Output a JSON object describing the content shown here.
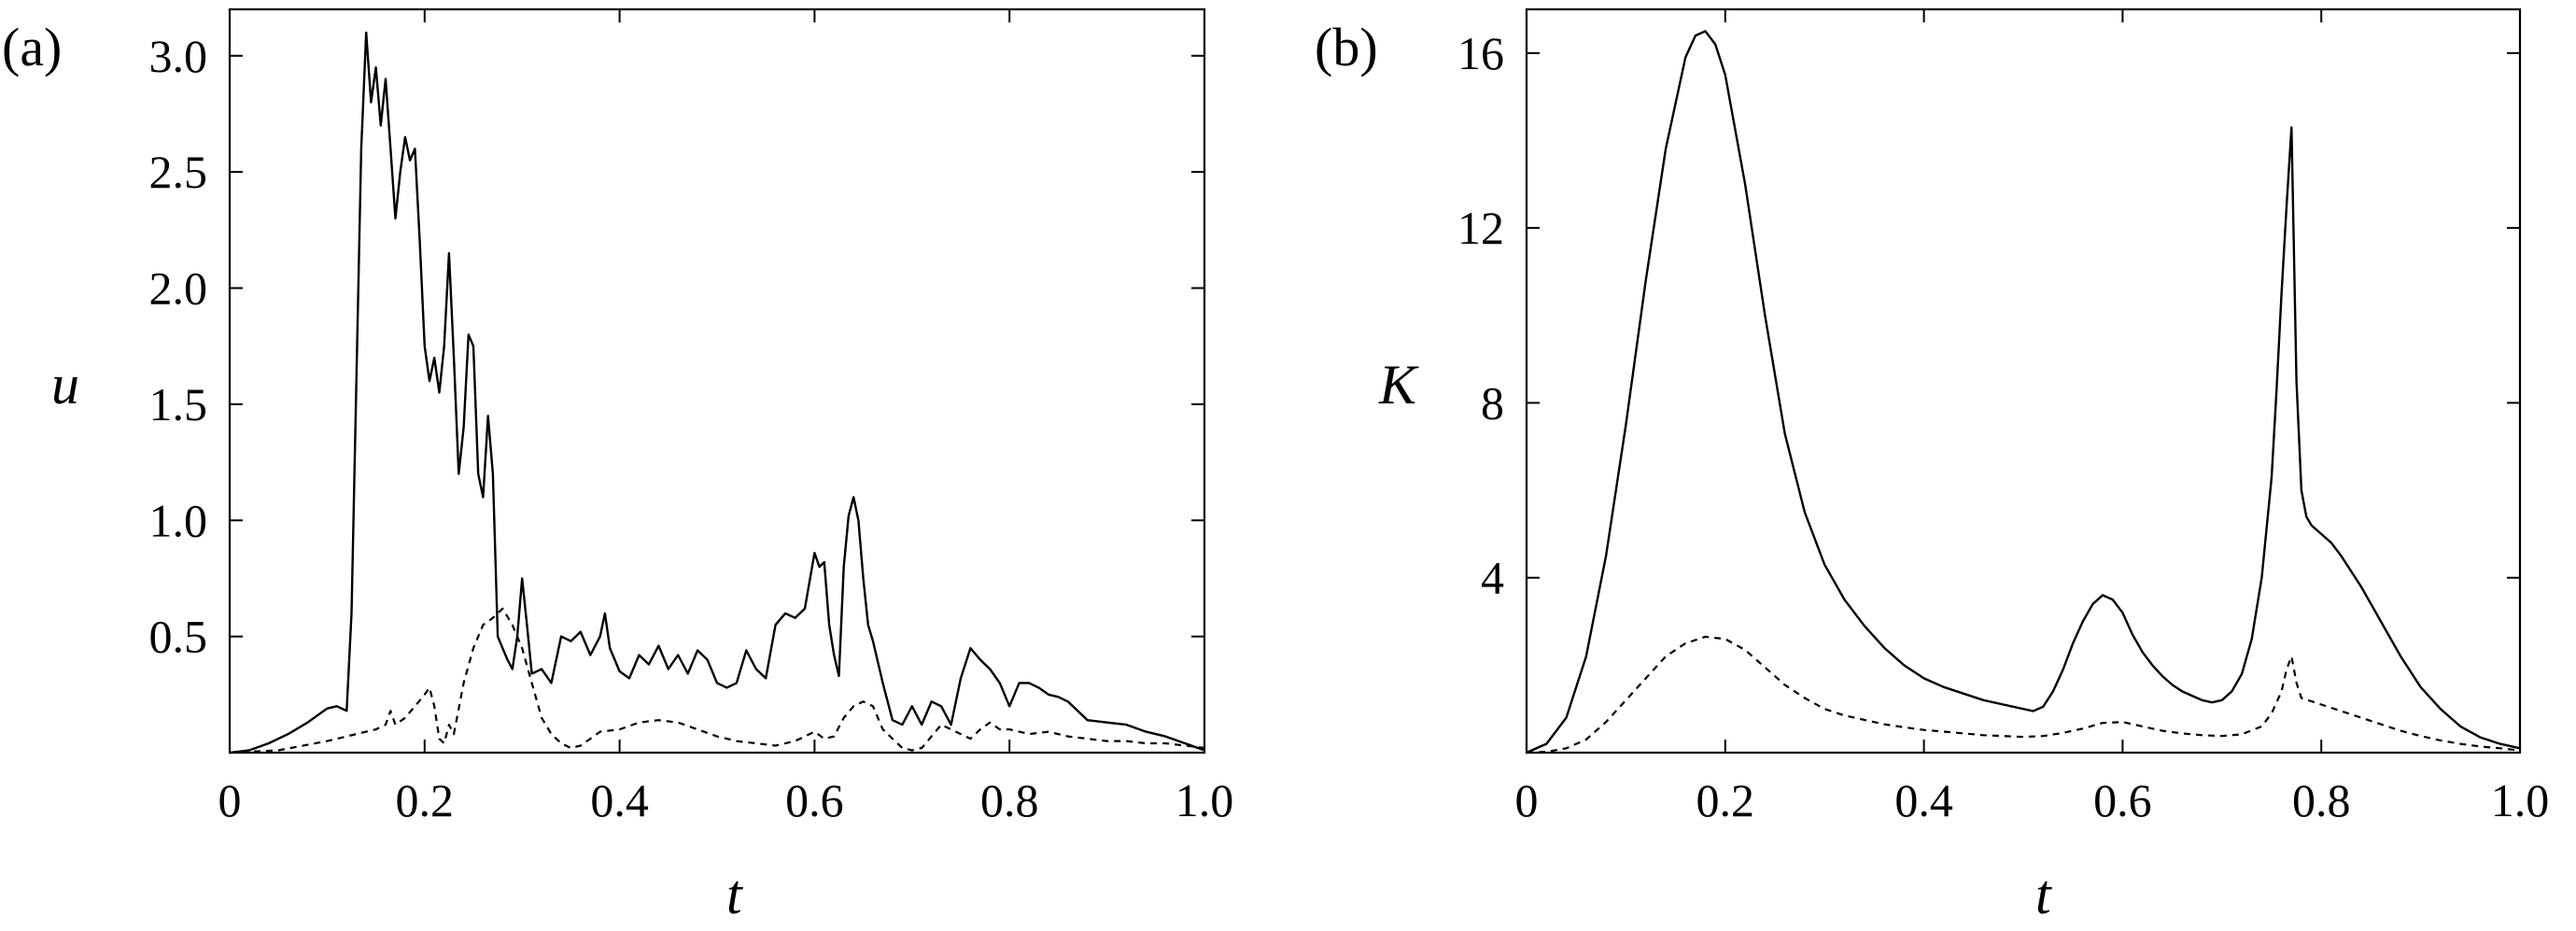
{
  "chart_data": [
    {
      "type": "line",
      "panel_label": "(a)",
      "xlabel": "t",
      "ylabel": "u",
      "xlim": [
        0,
        1.0
      ],
      "ylim": [
        0,
        3.2
      ],
      "xticks": [
        0,
        0.2,
        0.4,
        0.6,
        0.8,
        1.0
      ],
      "xtick_labels": [
        "0",
        "0.2",
        "0.4",
        "0.6",
        "0.8",
        "1.0"
      ],
      "yticks": [
        0.5,
        1.0,
        1.5,
        2.0,
        2.5,
        3.0
      ],
      "ytick_labels": [
        "0.5",
        "1.0",
        "1.5",
        "2.0",
        "2.5",
        "3.0"
      ],
      "grid": false,
      "series": [
        {
          "style": "solid",
          "x": [
            0.0,
            0.02,
            0.04,
            0.06,
            0.08,
            0.1,
            0.11,
            0.12,
            0.125,
            0.13,
            0.135,
            0.14,
            0.145,
            0.15,
            0.155,
            0.16,
            0.165,
            0.17,
            0.175,
            0.18,
            0.185,
            0.19,
            0.195,
            0.2,
            0.205,
            0.21,
            0.215,
            0.22,
            0.225,
            0.23,
            0.235,
            0.24,
            0.245,
            0.25,
            0.255,
            0.26,
            0.265,
            0.27,
            0.275,
            0.28,
            0.285,
            0.29,
            0.295,
            0.3,
            0.305,
            0.31,
            0.32,
            0.33,
            0.34,
            0.35,
            0.36,
            0.37,
            0.38,
            0.385,
            0.39,
            0.4,
            0.41,
            0.42,
            0.43,
            0.44,
            0.45,
            0.46,
            0.47,
            0.48,
            0.49,
            0.5,
            0.51,
            0.52,
            0.53,
            0.54,
            0.55,
            0.56,
            0.57,
            0.58,
            0.59,
            0.6,
            0.605,
            0.61,
            0.615,
            0.62,
            0.625,
            0.63,
            0.635,
            0.64,
            0.645,
            0.65,
            0.655,
            0.66,
            0.67,
            0.68,
            0.69,
            0.7,
            0.71,
            0.72,
            0.73,
            0.74,
            0.75,
            0.76,
            0.77,
            0.78,
            0.79,
            0.8,
            0.81,
            0.82,
            0.83,
            0.84,
            0.85,
            0.86,
            0.87,
            0.88,
            0.9,
            0.92,
            0.94,
            0.96,
            0.98,
            1.0
          ],
          "y": [
            0.0,
            0.01,
            0.04,
            0.08,
            0.13,
            0.19,
            0.2,
            0.18,
            0.6,
            1.6,
            2.6,
            3.1,
            2.8,
            2.95,
            2.7,
            2.9,
            2.6,
            2.3,
            2.5,
            2.65,
            2.55,
            2.6,
            2.2,
            1.75,
            1.6,
            1.7,
            1.55,
            1.75,
            2.15,
            1.7,
            1.2,
            1.4,
            1.8,
            1.75,
            1.2,
            1.1,
            1.45,
            1.2,
            0.5,
            0.45,
            0.4,
            0.36,
            0.5,
            0.75,
            0.55,
            0.34,
            0.36,
            0.3,
            0.5,
            0.48,
            0.52,
            0.42,
            0.5,
            0.6,
            0.45,
            0.35,
            0.32,
            0.42,
            0.38,
            0.46,
            0.36,
            0.42,
            0.34,
            0.44,
            0.4,
            0.3,
            0.28,
            0.3,
            0.44,
            0.36,
            0.32,
            0.55,
            0.6,
            0.58,
            0.62,
            0.86,
            0.8,
            0.82,
            0.55,
            0.42,
            0.33,
            0.8,
            1.02,
            1.1,
            1.0,
            0.75,
            0.55,
            0.48,
            0.3,
            0.14,
            0.12,
            0.2,
            0.12,
            0.22,
            0.2,
            0.12,
            0.32,
            0.45,
            0.4,
            0.36,
            0.3,
            0.2,
            0.3,
            0.3,
            0.28,
            0.25,
            0.24,
            0.22,
            0.18,
            0.14,
            0.13,
            0.12,
            0.09,
            0.07,
            0.04,
            0.01
          ],
          "name": ""
        },
        {
          "style": "dashed",
          "x": [
            0.0,
            0.05,
            0.1,
            0.14,
            0.15,
            0.16,
            0.165,
            0.17,
            0.18,
            0.19,
            0.2,
            0.205,
            0.21,
            0.215,
            0.22,
            0.225,
            0.23,
            0.24,
            0.25,
            0.26,
            0.27,
            0.28,
            0.29,
            0.3,
            0.31,
            0.32,
            0.33,
            0.34,
            0.35,
            0.36,
            0.37,
            0.38,
            0.4,
            0.42,
            0.44,
            0.46,
            0.48,
            0.5,
            0.52,
            0.54,
            0.56,
            0.58,
            0.6,
            0.61,
            0.62,
            0.63,
            0.64,
            0.65,
            0.66,
            0.67,
            0.68,
            0.69,
            0.7,
            0.71,
            0.72,
            0.73,
            0.74,
            0.75,
            0.76,
            0.77,
            0.78,
            0.79,
            0.8,
            0.82,
            0.84,
            0.86,
            0.88,
            0.9,
            0.92,
            0.94,
            0.96,
            0.98,
            1.0
          ],
          "y": [
            0.0,
            0.01,
            0.05,
            0.09,
            0.1,
            0.12,
            0.18,
            0.12,
            0.15,
            0.2,
            0.25,
            0.28,
            0.2,
            0.06,
            0.04,
            0.12,
            0.08,
            0.3,
            0.45,
            0.55,
            0.58,
            0.62,
            0.55,
            0.45,
            0.3,
            0.15,
            0.08,
            0.04,
            0.02,
            0.03,
            0.06,
            0.09,
            0.1,
            0.13,
            0.14,
            0.13,
            0.1,
            0.07,
            0.05,
            0.04,
            0.03,
            0.05,
            0.09,
            0.06,
            0.07,
            0.15,
            0.2,
            0.22,
            0.2,
            0.1,
            0.06,
            0.02,
            0.01,
            0.02,
            0.07,
            0.12,
            0.1,
            0.08,
            0.06,
            0.1,
            0.13,
            0.1,
            0.1,
            0.08,
            0.09,
            0.07,
            0.06,
            0.05,
            0.05,
            0.04,
            0.04,
            0.03,
            0.02
          ],
          "name": ""
        }
      ]
    },
    {
      "type": "line",
      "panel_label": "(b)",
      "xlabel": "t",
      "ylabel": "K",
      "xlim": [
        0,
        1.0
      ],
      "ylim": [
        0,
        17
      ],
      "xticks": [
        0,
        0.2,
        0.4,
        0.6,
        0.8,
        1.0
      ],
      "xtick_labels": [
        "0",
        "0.2",
        "0.4",
        "0.6",
        "0.8",
        "1.0"
      ],
      "yticks": [
        4,
        8,
        12,
        16
      ],
      "ytick_labels": [
        "4",
        "8",
        "12",
        "16"
      ],
      "grid": false,
      "series": [
        {
          "style": "solid",
          "x": [
            0.0,
            0.02,
            0.04,
            0.06,
            0.08,
            0.1,
            0.12,
            0.14,
            0.16,
            0.17,
            0.18,
            0.19,
            0.2,
            0.22,
            0.24,
            0.26,
            0.28,
            0.3,
            0.32,
            0.34,
            0.36,
            0.38,
            0.4,
            0.42,
            0.44,
            0.46,
            0.48,
            0.5,
            0.51,
            0.52,
            0.53,
            0.54,
            0.55,
            0.56,
            0.57,
            0.58,
            0.59,
            0.6,
            0.61,
            0.62,
            0.63,
            0.64,
            0.65,
            0.66,
            0.67,
            0.68,
            0.69,
            0.7,
            0.71,
            0.72,
            0.73,
            0.74,
            0.75,
            0.755,
            0.76,
            0.765,
            0.77,
            0.775,
            0.78,
            0.785,
            0.79,
            0.8,
            0.81,
            0.82,
            0.84,
            0.86,
            0.88,
            0.9,
            0.92,
            0.94,
            0.96,
            0.98,
            1.0
          ],
          "y": [
            0.0,
            0.2,
            0.8,
            2.2,
            4.5,
            7.5,
            10.8,
            13.8,
            15.9,
            16.4,
            16.5,
            16.2,
            15.5,
            13.0,
            10.0,
            7.3,
            5.5,
            4.3,
            3.5,
            2.9,
            2.4,
            2.0,
            1.7,
            1.5,
            1.35,
            1.2,
            1.1,
            1.0,
            0.95,
            1.05,
            1.4,
            1.9,
            2.5,
            3.0,
            3.4,
            3.6,
            3.5,
            3.2,
            2.7,
            2.3,
            2.0,
            1.75,
            1.55,
            1.4,
            1.3,
            1.2,
            1.15,
            1.2,
            1.4,
            1.8,
            2.6,
            4.0,
            6.3,
            8.3,
            10.5,
            12.5,
            14.3,
            8.5,
            6.0,
            5.4,
            5.2,
            5.0,
            4.8,
            4.5,
            3.8,
            3.0,
            2.2,
            1.5,
            1.0,
            0.6,
            0.35,
            0.2,
            0.1
          ],
          "name": ""
        },
        {
          "style": "dashed",
          "x": [
            0.0,
            0.02,
            0.04,
            0.06,
            0.08,
            0.1,
            0.12,
            0.14,
            0.16,
            0.18,
            0.2,
            0.22,
            0.24,
            0.26,
            0.28,
            0.3,
            0.32,
            0.34,
            0.36,
            0.38,
            0.4,
            0.42,
            0.44,
            0.46,
            0.48,
            0.5,
            0.52,
            0.54,
            0.56,
            0.58,
            0.6,
            0.62,
            0.64,
            0.66,
            0.68,
            0.7,
            0.72,
            0.74,
            0.75,
            0.76,
            0.765,
            0.77,
            0.775,
            0.78,
            0.8,
            0.82,
            0.84,
            0.86,
            0.88,
            0.9,
            0.92,
            0.94,
            0.96,
            0.98,
            1.0
          ],
          "y": [
            0.0,
            0.02,
            0.1,
            0.3,
            0.7,
            1.2,
            1.7,
            2.2,
            2.5,
            2.65,
            2.6,
            2.35,
            1.95,
            1.55,
            1.25,
            1.0,
            0.85,
            0.75,
            0.65,
            0.58,
            0.52,
            0.48,
            0.44,
            0.4,
            0.38,
            0.36,
            0.38,
            0.45,
            0.55,
            0.68,
            0.7,
            0.6,
            0.5,
            0.44,
            0.4,
            0.38,
            0.42,
            0.6,
            0.9,
            1.4,
            1.9,
            2.2,
            1.6,
            1.25,
            1.1,
            0.95,
            0.8,
            0.65,
            0.5,
            0.38,
            0.28,
            0.2,
            0.14,
            0.1,
            0.05
          ],
          "name": ""
        }
      ]
    }
  ]
}
